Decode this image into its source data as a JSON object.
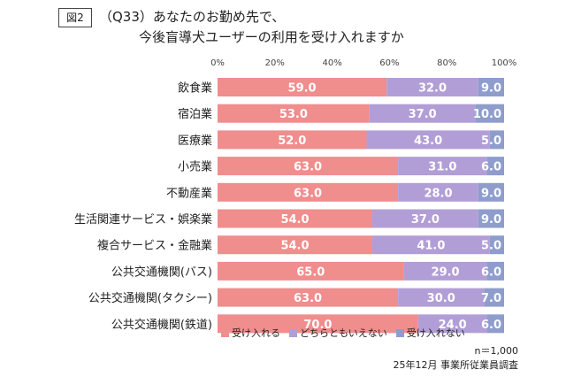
{
  "figure_label": "図2",
  "title_line1": "（Q33）あなたのお勤め先で、",
  "title_line2": "今後盲導犬ユーザーの利用を受け入れますか",
  "colors": {
    "accept": "#F08D8D",
    "neither": "#B29ED6",
    "reject": "#8E9DCC"
  },
  "legend": {
    "accept": "受け入れる",
    "neither": "どちらともいえない",
    "reject": "受け入れない"
  },
  "note_n": "n＝1,000",
  "note_source": "25年12月 事業所従業員調査",
  "chart_data": {
    "type": "bar",
    "orientation": "horizontal",
    "stacked": true,
    "percent_scale": true,
    "xlim": [
      0,
      100
    ],
    "x_ticks": [
      "0%",
      "20%",
      "40%",
      "60%",
      "80%",
      "100%"
    ],
    "categories": [
      "飲食業",
      "宿泊業",
      "医療業",
      "小売業",
      "不動産業",
      "生活関連サービス・娯楽業",
      "複合サービス・金融業",
      "公共交通機関(バス)",
      "公共交通機関(タクシー)",
      "公共交通機関(鉄道)"
    ],
    "series": [
      {
        "name": "受け入れる",
        "values": [
          59.0,
          53.0,
          52.0,
          63.0,
          63.0,
          54.0,
          54.0,
          65.0,
          63.0,
          70.0
        ],
        "labels": [
          "59.0",
          "53.0",
          "52.0",
          "63.0",
          "63.0",
          "54.0",
          "54.0",
          "65.0",
          "63.0",
          "70.0"
        ]
      },
      {
        "name": "どちらともいえない",
        "values": [
          32.0,
          37.0,
          43.0,
          31.0,
          28.0,
          37.0,
          41.0,
          29.0,
          30.0,
          24.0
        ],
        "labels": [
          "32.0",
          "37.0",
          "43.0",
          "31.0",
          "28.0",
          "37.0",
          "41.0",
          "29.0",
          "30.0",
          "24.0"
        ]
      },
      {
        "name": "受け入れない",
        "values": [
          9.0,
          10.0,
          5.0,
          6.0,
          9.0,
          9.0,
          5.0,
          6.0,
          7.0,
          6.0
        ],
        "labels": [
          "9.0",
          "10.0",
          "5.0",
          "6.0",
          "9.0",
          "9.0",
          "5.0",
          "6.0",
          "7.0",
          "6.0"
        ]
      }
    ]
  }
}
